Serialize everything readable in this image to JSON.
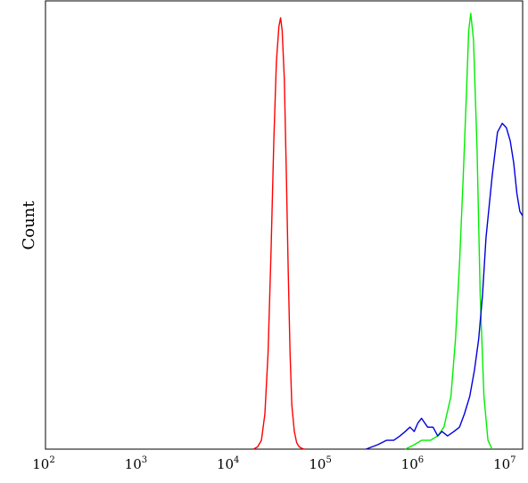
{
  "chart_data": {
    "type": "line",
    "ylabel": "Count",
    "xlabel": "",
    "x_scale": "log",
    "xlim": [
      100,
      15000000
    ],
    "ylim": [
      0,
      1
    ],
    "grid": false,
    "ticks": [
      {
        "base": "10",
        "exp": "2",
        "value": 100
      },
      {
        "base": "10",
        "exp": "3",
        "value": 1000
      },
      {
        "base": "10",
        "exp": "4",
        "value": 10000
      },
      {
        "base": "10",
        "exp": "5",
        "value": 100000
      },
      {
        "base": "10",
        "exp": "6",
        "value": 1000000
      },
      {
        "base": "10",
        "exp": "7",
        "value": 10000000
      }
    ],
    "series": [
      {
        "color": "#ff0000",
        "x": [
          18000,
          20000,
          22000,
          24000,
          26000,
          28000,
          30000,
          32000,
          34000,
          35500,
          37000,
          39000,
          41000,
          43000,
          45000,
          47000,
          50000,
          53000,
          56000,
          60000,
          65000
        ],
        "y": [
          0,
          0.005,
          0.02,
          0.08,
          0.22,
          0.45,
          0.7,
          0.88,
          0.96,
          0.98,
          0.95,
          0.84,
          0.62,
          0.4,
          0.22,
          0.1,
          0.04,
          0.015,
          0.006,
          0.002,
          0
        ]
      },
      {
        "color": "#00ee00",
        "x": [
          800000,
          1000000,
          1200000,
          1500000,
          1800000,
          2100000,
          2500000,
          2800000,
          3100000,
          3400000,
          3700000,
          3900000,
          4100000,
          4400000,
          4800000,
          5200000,
          5700000,
          6300000,
          7000000
        ],
        "y": [
          0,
          0.01,
          0.02,
          0.02,
          0.03,
          0.05,
          0.12,
          0.25,
          0.42,
          0.62,
          0.82,
          0.95,
          0.99,
          0.93,
          0.68,
          0.35,
          0.12,
          0.02,
          0
        ]
      },
      {
        "color": "#0000dd",
        "x": [
          300000,
          400000,
          500000,
          600000,
          700000,
          800000,
          900000,
          1000000,
          1100000,
          1200000,
          1400000,
          1600000,
          1800000,
          2000000,
          2300000,
          2700000,
          3100000,
          3500000,
          4000000,
          4500000,
          5000000,
          5500000,
          6000000,
          7000000,
          8000000,
          9000000,
          10000000,
          11000000,
          12000000,
          13000000,
          14000000,
          15000000
        ],
        "y": [
          0,
          0.01,
          0.02,
          0.02,
          0.03,
          0.04,
          0.05,
          0.04,
          0.06,
          0.07,
          0.05,
          0.05,
          0.03,
          0.04,
          0.03,
          0.04,
          0.05,
          0.08,
          0.12,
          0.18,
          0.25,
          0.35,
          0.48,
          0.62,
          0.72,
          0.74,
          0.73,
          0.7,
          0.65,
          0.58,
          0.54,
          0.53
        ]
      }
    ]
  }
}
